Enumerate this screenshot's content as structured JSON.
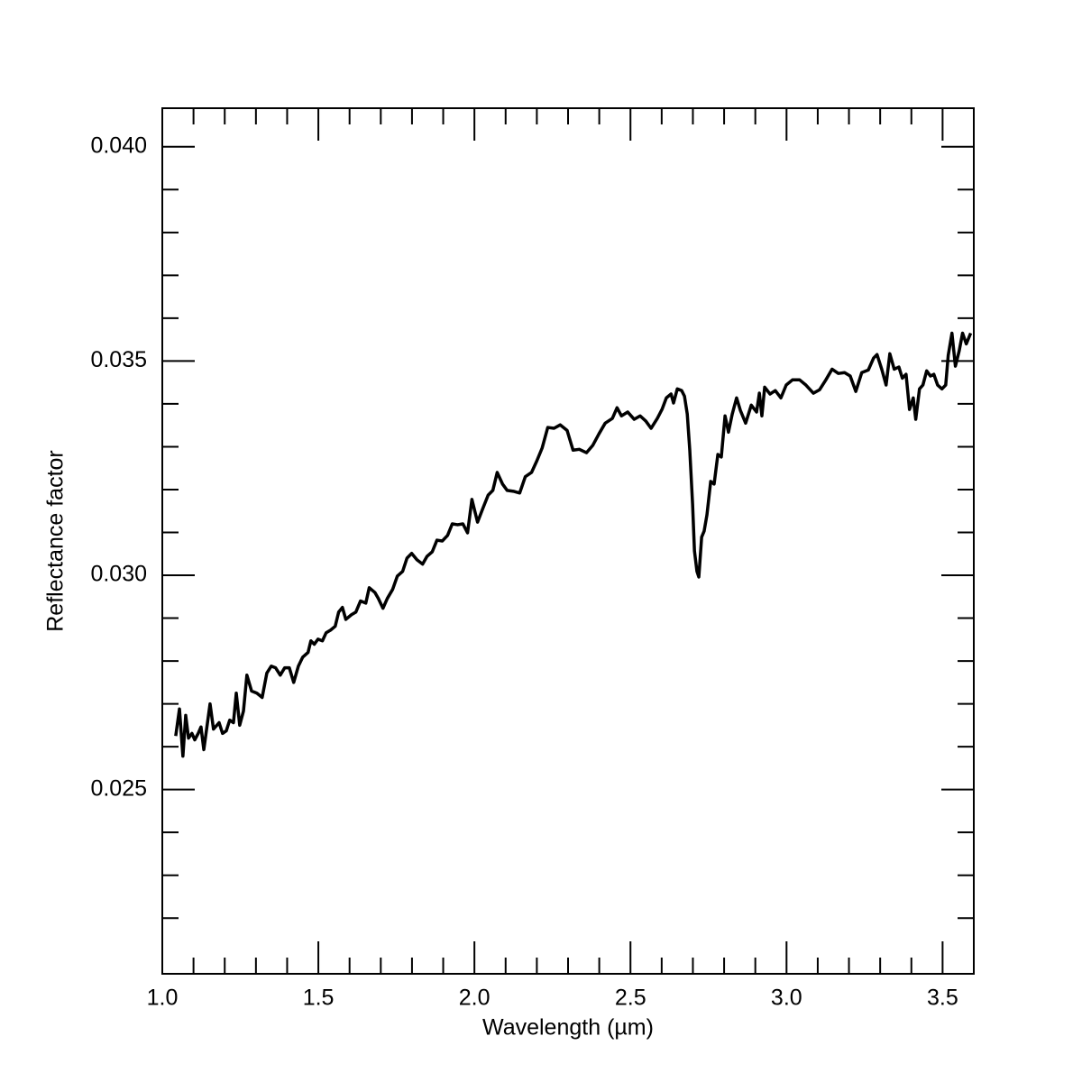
{
  "chart_data": {
    "type": "line",
    "xlabel": "Wavelength (µm)",
    "ylabel": "Reflectance factor",
    "color": "#000000",
    "xlim": [
      1.0,
      3.6
    ],
    "ylim": [
      0.0207,
      0.0409
    ],
    "xticks": [
      {
        "value": 1.0,
        "label": "1.0"
      },
      1.5,
      {
        "value": 2.0,
        "label": "2.0"
      },
      2.5,
      {
        "value": 3.0,
        "label": "3.0"
      },
      3.5
    ],
    "yticks": [
      0.025,
      {
        "value": 0.03,
        "label": "0.030"
      },
      0.035,
      {
        "value": 0.04,
        "label": "0.040"
      }
    ],
    "xminorticks": [
      1.1,
      1.2,
      1.3,
      1.4,
      1.6,
      1.7,
      1.8,
      1.9,
      2.1,
      2.2,
      2.3,
      2.4,
      2.6,
      2.7,
      2.8,
      2.9,
      3.1,
      3.2,
      3.3,
      3.4
    ],
    "yminorticks": [
      0.022,
      0.023,
      0.024,
      0.026,
      0.027,
      0.028,
      0.029,
      0.031,
      0.032,
      0.033,
      0.034,
      0.036,
      0.037,
      0.038,
      0.039
    ],
    "x": [
      1.043,
      1.055,
      1.066,
      1.075,
      1.084,
      1.095,
      1.104,
      1.115,
      1.124,
      1.133,
      1.144,
      1.153,
      1.164,
      1.182,
      1.193,
      1.205,
      1.216,
      1.228,
      1.237,
      1.248,
      1.26,
      1.271,
      1.286,
      1.303,
      1.32,
      1.335,
      1.349,
      1.363,
      1.378,
      1.392,
      1.407,
      1.421,
      1.436,
      1.45,
      1.467,
      1.476,
      1.487,
      1.499,
      1.513,
      1.525,
      1.539,
      1.554,
      1.565,
      1.577,
      1.588,
      1.606,
      1.62,
      1.635,
      1.652,
      1.663,
      1.681,
      1.692,
      1.707,
      1.721,
      1.738,
      1.753,
      1.77,
      1.784,
      1.799,
      1.816,
      1.834,
      1.848,
      1.865,
      1.88,
      1.897,
      1.914,
      1.929,
      1.946,
      1.963,
      1.978,
      1.992,
      2.01,
      2.027,
      2.044,
      2.059,
      2.073,
      2.09,
      2.105,
      2.125,
      2.145,
      2.163,
      2.183,
      2.2,
      2.217,
      2.235,
      2.255,
      2.275,
      2.297,
      2.316,
      2.336,
      2.359,
      2.379,
      2.399,
      2.419,
      2.442,
      2.457,
      2.471,
      2.491,
      2.512,
      2.531,
      2.549,
      2.566,
      2.586,
      2.601,
      2.615,
      2.63,
      2.638,
      2.65,
      2.664,
      2.673,
      2.682,
      2.69,
      2.699,
      2.705,
      2.713,
      2.719,
      2.728,
      2.736,
      2.745,
      2.757,
      2.768,
      2.78,
      2.791,
      2.803,
      2.814,
      2.826,
      2.84,
      2.852,
      2.869,
      2.887,
      2.904,
      2.913,
      2.921,
      2.93,
      2.947,
      2.964,
      2.982,
      2.999,
      3.019,
      3.042,
      3.062,
      3.086,
      3.106,
      3.126,
      3.146,
      3.166,
      3.186,
      3.204,
      3.222,
      3.241,
      3.262,
      3.279,
      3.29,
      3.305,
      3.319,
      3.331,
      3.345,
      3.36,
      3.371,
      3.383,
      3.394,
      3.406,
      3.414,
      3.426,
      3.437,
      3.449,
      3.461,
      3.472,
      3.484,
      3.498,
      3.51,
      3.518,
      3.53,
      3.541,
      3.553,
      3.564,
      3.576,
      3.59
    ],
    "values": [
      0.02625,
      0.02688,
      0.02578,
      0.02673,
      0.0262,
      0.02631,
      0.02616,
      0.02631,
      0.02646,
      0.02593,
      0.02652,
      0.027,
      0.02641,
      0.02656,
      0.02631,
      0.02637,
      0.02662,
      0.02656,
      0.02725,
      0.0265,
      0.02683,
      0.02767,
      0.0273,
      0.02725,
      0.02715,
      0.02772,
      0.02788,
      0.02784,
      0.02767,
      0.02784,
      0.02784,
      0.0275,
      0.02788,
      0.02809,
      0.0282,
      0.02847,
      0.02839,
      0.02851,
      0.02847,
      0.02866,
      0.02872,
      0.02881,
      0.02914,
      0.02925,
      0.02897,
      0.02908,
      0.02914,
      0.0294,
      0.02935,
      0.02971,
      0.0296,
      0.02946,
      0.02923,
      0.02946,
      0.02967,
      0.02998,
      0.03009,
      0.0304,
      0.03051,
      0.03036,
      0.03026,
      0.03044,
      0.03055,
      0.03082,
      0.0308,
      0.03093,
      0.0312,
      0.03118,
      0.0312,
      0.03099,
      0.03177,
      0.03124,
      0.03156,
      0.03187,
      0.03198,
      0.0324,
      0.03213,
      0.03198,
      0.03196,
      0.03192,
      0.0323,
      0.0324,
      0.03267,
      0.03297,
      0.03345,
      0.03343,
      0.03351,
      0.03338,
      0.03292,
      0.03294,
      0.03286,
      0.03303,
      0.0333,
      0.03355,
      0.03366,
      0.03391,
      0.03372,
      0.03381,
      0.03364,
      0.03372,
      0.0336,
      0.03343,
      0.03366,
      0.03387,
      0.03414,
      0.03423,
      0.03402,
      0.03435,
      0.03431,
      0.03418,
      0.03376,
      0.03292,
      0.03166,
      0.03057,
      0.03009,
      0.02996,
      0.03089,
      0.03103,
      0.03141,
      0.03219,
      0.03213,
      0.03282,
      0.03276,
      0.03372,
      0.03334,
      0.03376,
      0.03414,
      0.03385,
      0.03355,
      0.03397,
      0.03381,
      0.03425,
      0.03372,
      0.03439,
      0.03423,
      0.03431,
      0.03414,
      0.03444,
      0.03456,
      0.03456,
      0.03444,
      0.03425,
      0.03433,
      0.03456,
      0.03481,
      0.03471,
      0.03473,
      0.03465,
      0.03429,
      0.03473,
      0.03479,
      0.03507,
      0.03515,
      0.03481,
      0.03444,
      0.03517,
      0.03481,
      0.03486,
      0.0346,
      0.03469,
      0.03387,
      0.03414,
      0.03364,
      0.03435,
      0.03444,
      0.03477,
      0.03465,
      0.03469,
      0.03444,
      0.03435,
      0.03444,
      0.03513,
      0.03565,
      0.03488,
      0.03523,
      0.03565,
      0.0354,
      0.03565
    ]
  }
}
